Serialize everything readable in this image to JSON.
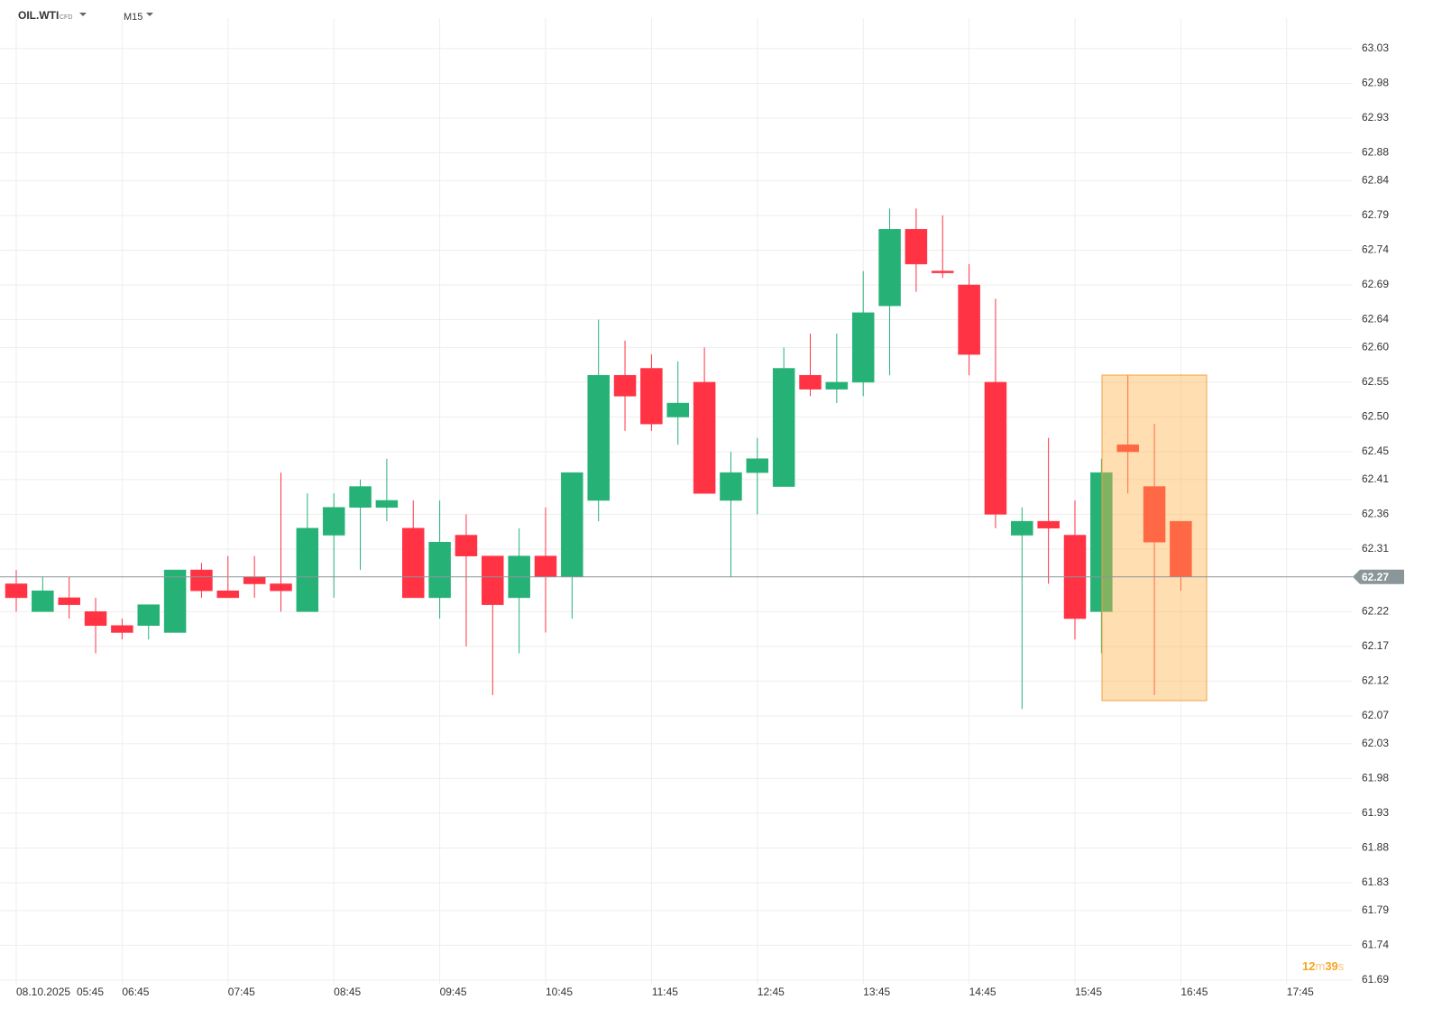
{
  "header": {
    "symbol": "OIL.WTI",
    "symbol_type": "CFD",
    "timeframe": "M15"
  },
  "chart_data": {
    "type": "candlestick",
    "date": "08.10.2025",
    "xticks": [
      "05:45",
      "06:45",
      "07:45",
      "08:45",
      "09:45",
      "10:45",
      "11:45",
      "12:45",
      "13:45",
      "14:45",
      "15:45",
      "16:45",
      "17:45"
    ],
    "open": [
      62.26,
      62.22,
      62.24,
      62.22,
      62.2,
      62.2,
      62.19,
      62.28,
      62.25,
      62.27,
      62.26,
      62.22,
      62.33,
      62.37,
      62.37,
      62.34,
      62.24,
      62.33,
      62.3,
      62.24,
      62.3,
      62.27,
      62.38,
      62.56,
      62.57,
      62.5,
      62.55,
      62.38,
      62.42,
      62.4,
      62.56,
      62.54,
      62.55,
      62.66,
      62.77,
      62.71,
      62.69,
      62.55,
      62.33,
      62.35,
      62.33,
      62.22,
      62.46,
      62.4,
      62.35
    ],
    "high": [
      62.28,
      62.27,
      62.27,
      62.24,
      62.21,
      62.23,
      62.28,
      62.29,
      62.3,
      62.3,
      62.42,
      62.39,
      62.39,
      62.41,
      62.44,
      62.38,
      62.38,
      62.36,
      62.3,
      62.34,
      62.37,
      62.42,
      62.64,
      62.61,
      62.59,
      62.58,
      62.6,
      62.45,
      62.47,
      62.6,
      62.62,
      62.62,
      62.71,
      62.8,
      62.8,
      62.79,
      62.72,
      62.67,
      62.37,
      62.47,
      62.38,
      62.44,
      62.56,
      62.49,
      62.35
    ],
    "low": [
      62.22,
      62.22,
      62.21,
      62.16,
      62.18,
      62.18,
      62.19,
      62.24,
      62.24,
      62.24,
      62.22,
      62.22,
      62.24,
      62.28,
      62.35,
      62.24,
      62.21,
      62.17,
      62.1,
      62.16,
      62.19,
      62.21,
      62.35,
      62.48,
      62.48,
      62.46,
      62.39,
      62.27,
      62.36,
      62.4,
      62.53,
      62.52,
      62.53,
      62.56,
      62.68,
      62.7,
      62.56,
      62.34,
      62.08,
      62.26,
      62.18,
      62.16,
      62.39,
      62.1,
      62.25
    ],
    "close": [
      62.24,
      62.25,
      62.23,
      62.2,
      62.19,
      62.23,
      62.28,
      62.25,
      62.24,
      62.26,
      62.25,
      62.34,
      62.37,
      62.4,
      62.38,
      62.24,
      62.32,
      62.3,
      62.23,
      62.3,
      62.27,
      62.42,
      62.56,
      62.53,
      62.49,
      62.52,
      62.39,
      62.42,
      62.44,
      62.57,
      62.54,
      62.55,
      62.65,
      62.77,
      62.72,
      62.71,
      62.59,
      62.36,
      62.35,
      62.34,
      62.21,
      62.42,
      62.45,
      62.32,
      62.27
    ],
    "up_color": "#26b276",
    "down_color": "#ff3344",
    "ylim": [
      61.686,
      63.061
    ],
    "yticks": [
      63.03,
      62.98,
      62.93,
      62.88,
      62.84,
      62.79,
      62.74,
      62.69,
      62.64,
      {
        "value": 62.6,
        "label": "62.60"
      },
      62.55,
      {
        "value": 62.5,
        "label": "62.50"
      },
      62.45,
      62.41,
      62.36,
      62.31,
      62.22,
      62.17,
      62.12,
      62.07,
      62.03,
      61.98,
      61.93,
      61.88,
      61.83,
      61.79,
      61.74,
      61.69
    ],
    "grid": true,
    "last_price": 62.27,
    "countdown": [
      "12",
      "m",
      "39",
      "s"
    ]
  }
}
